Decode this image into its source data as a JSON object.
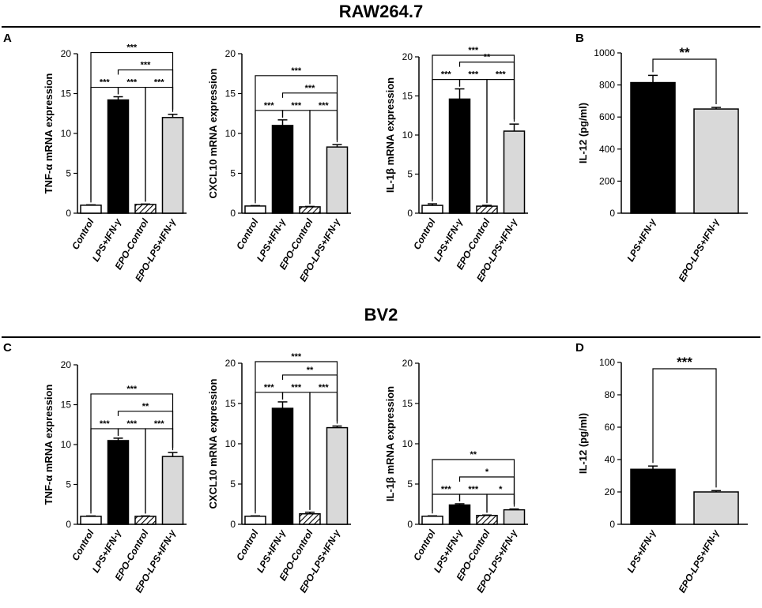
{
  "sections": [
    {
      "title": "RAW264.7"
    },
    {
      "title": "BV2"
    }
  ],
  "panel_labels": [
    "A",
    "B",
    "C",
    "D"
  ],
  "chart_data": [
    {
      "id": "A1",
      "type": "bar",
      "categories": [
        "Control",
        "LPS+IFN-γ",
        "EPO-Control",
        "EPO-LPS+IFN-γ"
      ],
      "values": [
        1.0,
        14.2,
        1.1,
        12.0
      ],
      "errors": [
        0.05,
        0.4,
        0.05,
        0.4
      ],
      "fills": [
        "white",
        "black",
        "hatch",
        "gray"
      ],
      "ylabel": "TNF-α mRNA expression",
      "ylim": [
        0,
        20
      ],
      "yticks": [
        0,
        5,
        10,
        15,
        20
      ],
      "significance": [
        {
          "from": 0,
          "to": 3,
          "label": "***"
        },
        {
          "from": 1,
          "to": 3,
          "label": "***"
        },
        {
          "from": 0,
          "to": 1,
          "label": "***"
        },
        {
          "from": 1,
          "to": 2,
          "label": "***"
        },
        {
          "from": 2,
          "to": 3,
          "label": "***"
        }
      ]
    },
    {
      "id": "A2",
      "type": "bar",
      "categories": [
        "Control",
        "LPS+IFN-γ",
        "EPO-Control",
        "EPO-LPS+IFN-γ"
      ],
      "values": [
        0.9,
        11.0,
        0.8,
        8.3
      ],
      "errors": [
        0.05,
        0.7,
        0.05,
        0.3
      ],
      "fills": [
        "white",
        "black",
        "hatch",
        "gray"
      ],
      "ylabel": "CXCL10 mRNA expression",
      "ylim": [
        0,
        20
      ],
      "yticks": [
        0,
        5,
        10,
        15,
        20
      ],
      "significance": [
        {
          "from": 0,
          "to": 3,
          "label": "***"
        },
        {
          "from": 1,
          "to": 3,
          "label": "***"
        },
        {
          "from": 0,
          "to": 1,
          "label": "***"
        },
        {
          "from": 1,
          "to": 2,
          "label": "***"
        },
        {
          "from": 2,
          "to": 3,
          "label": "***"
        }
      ]
    },
    {
      "id": "A3",
      "type": "bar",
      "categories": [
        "Control",
        "LPS+IFN-γ",
        "EPO-Control",
        "EPO-LPS+IFN-γ"
      ],
      "values": [
        1.0,
        14.6,
        0.9,
        10.5
      ],
      "errors": [
        0.2,
        1.3,
        0.1,
        0.9
      ],
      "fills": [
        "white",
        "black",
        "hatch",
        "gray"
      ],
      "ylabel": "IL-1β mRNA expression",
      "ylim": [
        0,
        20
      ],
      "yticks": [
        0,
        5,
        10,
        15,
        20
      ],
      "significance": [
        {
          "from": 0,
          "to": 3,
          "label": "***"
        },
        {
          "from": 1,
          "to": 3,
          "label": "**"
        },
        {
          "from": 0,
          "to": 1,
          "label": "***"
        },
        {
          "from": 1,
          "to": 2,
          "label": "***"
        },
        {
          "from": 2,
          "to": 3,
          "label": "***"
        }
      ]
    },
    {
      "id": "B",
      "type": "bar",
      "categories": [
        "LPS+IFN-γ",
        "EPO-LPS+IFN-γ"
      ],
      "values": [
        815,
        650
      ],
      "errors": [
        45,
        10
      ],
      "fills": [
        "black",
        "gray"
      ],
      "ylabel": "IL-12 (pg/ml)",
      "ylim": [
        0,
        1000
      ],
      "yticks": [
        0,
        200,
        400,
        600,
        800,
        1000
      ],
      "significance": [
        {
          "from": 0,
          "to": 1,
          "label": "**"
        }
      ]
    },
    {
      "id": "C1",
      "type": "bar",
      "categories": [
        "Control",
        "LPS+IFN-γ",
        "EPO-Control",
        "EPO-LPS+IFN-γ"
      ],
      "values": [
        1.0,
        10.5,
        1.0,
        8.5
      ],
      "errors": [
        0.05,
        0.3,
        0.05,
        0.5
      ],
      "fills": [
        "white",
        "black",
        "hatch",
        "gray"
      ],
      "ylabel": "TNF-α mRNA expression",
      "ylim": [
        0,
        20
      ],
      "yticks": [
        0,
        5,
        10,
        15,
        20
      ],
      "significance": [
        {
          "from": 0,
          "to": 3,
          "label": "***"
        },
        {
          "from": 1,
          "to": 3,
          "label": "**"
        },
        {
          "from": 0,
          "to": 1,
          "label": "***"
        },
        {
          "from": 1,
          "to": 2,
          "label": "***"
        },
        {
          "from": 2,
          "to": 3,
          "label": "***"
        }
      ]
    },
    {
      "id": "C2",
      "type": "bar",
      "categories": [
        "Control",
        "LPS+IFN-γ",
        "EPO-Control",
        "EPO-LPS+IFN-γ"
      ],
      "values": [
        1.0,
        14.4,
        1.3,
        12.0
      ],
      "errors": [
        0.05,
        0.8,
        0.2,
        0.2
      ],
      "fills": [
        "white",
        "black",
        "hatch",
        "gray"
      ],
      "ylabel": "CXCL10 mRNA expression",
      "ylim": [
        0,
        20
      ],
      "yticks": [
        0,
        5,
        10,
        15,
        20
      ],
      "significance": [
        {
          "from": 0,
          "to": 3,
          "label": "***"
        },
        {
          "from": 1,
          "to": 3,
          "label": "**"
        },
        {
          "from": 0,
          "to": 1,
          "label": "***"
        },
        {
          "from": 1,
          "to": 2,
          "label": "***"
        },
        {
          "from": 2,
          "to": 3,
          "label": "***"
        }
      ]
    },
    {
      "id": "C3",
      "type": "bar",
      "categories": [
        "Control",
        "LPS+IFN-γ",
        "EPO-Control",
        "EPO-LPS+IFN-γ"
      ],
      "values": [
        1.0,
        2.4,
        1.1,
        1.8
      ],
      "errors": [
        0.05,
        0.15,
        0.05,
        0.1
      ],
      "fills": [
        "white",
        "black",
        "hatch",
        "gray"
      ],
      "ylabel": "IL-1β mRNA expression",
      "ylim": [
        0,
        20
      ],
      "yticks": [
        0,
        5,
        10,
        15,
        20
      ],
      "significance": [
        {
          "from": 0,
          "to": 3,
          "label": "**"
        },
        {
          "from": 1,
          "to": 3,
          "label": "*"
        },
        {
          "from": 0,
          "to": 1,
          "label": "***"
        },
        {
          "from": 1,
          "to": 2,
          "label": "***"
        },
        {
          "from": 2,
          "to": 3,
          "label": "*"
        }
      ]
    },
    {
      "id": "D",
      "type": "bar",
      "categories": [
        "LPS+IFN-γ",
        "EPO-LPS+IFN-γ"
      ],
      "values": [
        34,
        20
      ],
      "errors": [
        2,
        0.8
      ],
      "fills": [
        "black",
        "gray"
      ],
      "ylabel": "IL-12 (pg/ml)",
      "ylim": [
        0,
        100
      ],
      "yticks": [
        0,
        20,
        40,
        60,
        80,
        100
      ],
      "significance": [
        {
          "from": 0,
          "to": 1,
          "label": "***"
        }
      ]
    }
  ]
}
